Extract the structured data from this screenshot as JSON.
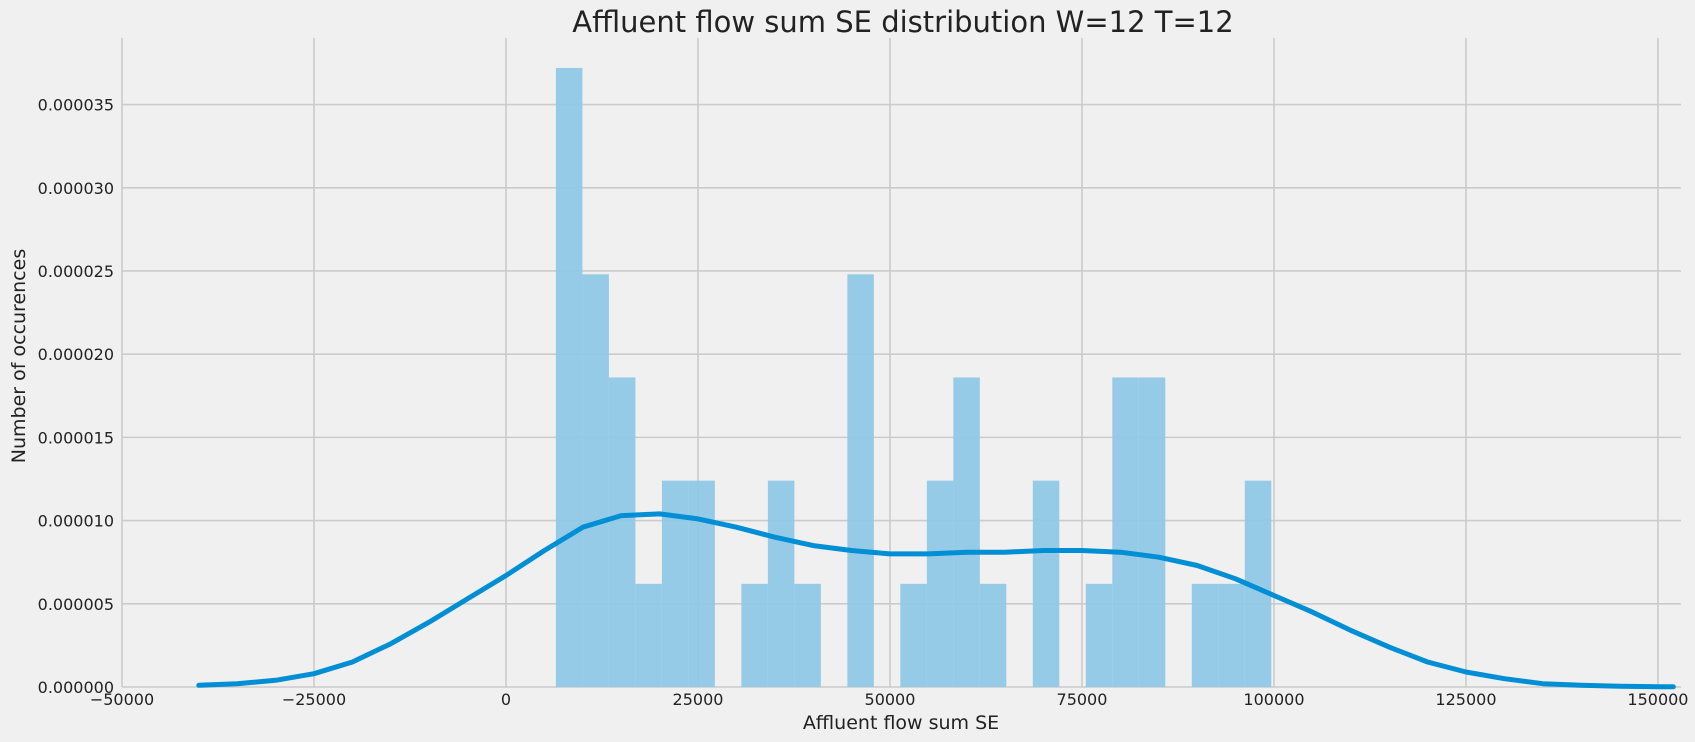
{
  "chart_data": {
    "type": "bar",
    "title": "Affluent flow sum SE distribution W=12 T=12",
    "xlabel": "Affluent flow sum SE",
    "ylabel": "Number of occurences",
    "xlim": [
      -50000,
      153000
    ],
    "ylim": [
      0,
      3.9e-05
    ],
    "xticks": [
      -50000,
      -25000,
      0,
      25000,
      50000,
      75000,
      100000,
      125000,
      150000
    ],
    "xtick_labels": [
      "−50000",
      "−25000",
      "0",
      "25000",
      "50000",
      "75000",
      "100000",
      "125000",
      "150000"
    ],
    "yticks": [
      0,
      5e-06,
      1e-05,
      1.5e-05,
      2e-05,
      2.5e-05,
      3e-05,
      3.5e-05
    ],
    "ytick_labels": [
      "0.000000",
      "0.000005",
      "0.000010",
      "0.000015",
      "0.000020",
      "0.000025",
      "0.000030",
      "0.000035"
    ],
    "grid": true,
    "colors": {
      "bars": "#8fc8e5",
      "kde": "#008fd5",
      "grid": "#cbcbcb",
      "background": "#f0f0f0"
    },
    "histogram": {
      "bin_start": 6500,
      "bin_width": 3450,
      "densities": [
        3.72e-05,
        2.48e-05,
        1.86e-05,
        6.2e-06,
        1.24e-05,
        1.24e-05,
        0,
        6.2e-06,
        1.24e-05,
        6.2e-06,
        0,
        2.48e-05,
        0,
        6.2e-06,
        1.24e-05,
        1.86e-05,
        6.2e-06,
        0,
        1.24e-05,
        0,
        6.2e-06,
        1.86e-05,
        1.86e-05,
        0,
        6.2e-06,
        6.2e-06,
        1.24e-05
      ]
    },
    "kde": {
      "x": [
        -40000,
        -35000,
        -30000,
        -25000,
        -20000,
        -15000,
        -10000,
        -5000,
        0,
        5000,
        10000,
        15000,
        20000,
        25000,
        30000,
        35000,
        40000,
        45000,
        50000,
        55000,
        60000,
        65000,
        70000,
        75000,
        80000,
        85000,
        90000,
        95000,
        100000,
        105000,
        110000,
        115000,
        120000,
        125000,
        130000,
        135000,
        140000,
        145000,
        150000,
        152000
      ],
      "y": [
        1e-07,
        2e-07,
        4e-07,
        8e-07,
        1.5e-06,
        2.6e-06,
        3.9e-06,
        5.3e-06,
        6.7e-06,
        8.2e-06,
        9.6e-06,
        1.03e-05,
        1.04e-05,
        1.01e-05,
        9.6e-06,
        9e-06,
        8.5e-06,
        8.2e-06,
        8e-06,
        8e-06,
        8.1e-06,
        8.1e-06,
        8.2e-06,
        8.2e-06,
        8.1e-06,
        7.8e-06,
        7.3e-06,
        6.5e-06,
        5.5e-06,
        4.5e-06,
        3.4e-06,
        2.4e-06,
        1.5e-06,
        9e-07,
        5e-07,
        2e-07,
        1e-07,
        5e-08,
        2e-08,
        1e-08
      ]
    }
  }
}
